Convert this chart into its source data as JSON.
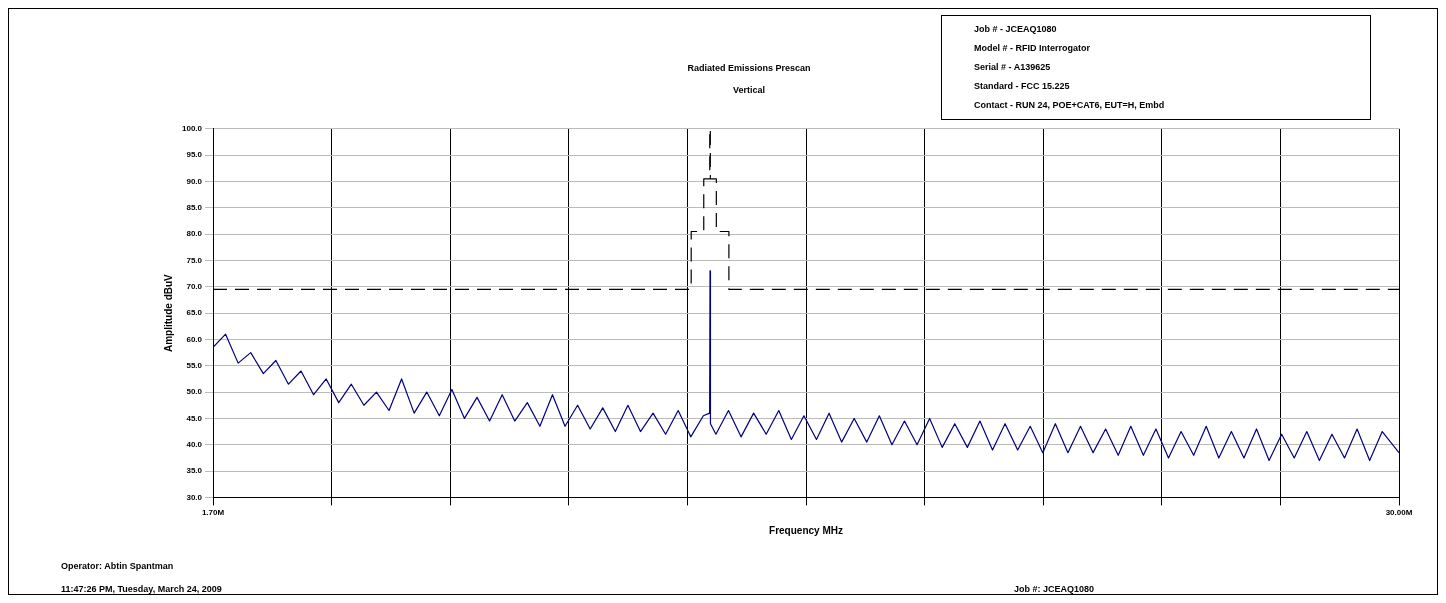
{
  "chart_data": {
    "type": "line",
    "title": "Radiated Emissions Prescan",
    "subtitle": "Vertical",
    "xlabel": "Frequency MHz",
    "ylabel": "Amplitude dBuV",
    "xlim": [
      1.7,
      30
    ],
    "xticks": [
      {
        "value": 1.7,
        "label": "1.70M"
      },
      {
        "value": 4.53,
        "label": null
      },
      {
        "value": 7.36,
        "label": null
      },
      {
        "value": 10.19,
        "label": null
      },
      {
        "value": 13.02,
        "label": null
      },
      {
        "value": 15.85,
        "label": null
      },
      {
        "value": 18.68,
        "label": null
      },
      {
        "value": 21.51,
        "label": null
      },
      {
        "value": 24.34,
        "label": null
      },
      {
        "value": 27.17,
        "label": null
      },
      {
        "value": 30,
        "label": "30.00M"
      }
    ],
    "ylim": [
      30,
      100
    ],
    "yticks": [
      {
        "value": 30,
        "label": "30.0"
      },
      {
        "value": 35,
        "label": "35.0"
      },
      {
        "value": 40,
        "label": "40.0"
      },
      {
        "value": 45,
        "label": "45.0"
      },
      {
        "value": 50,
        "label": "50.0"
      },
      {
        "value": 55,
        "label": "55.0"
      },
      {
        "value": 60,
        "label": "60.0"
      },
      {
        "value": 65,
        "label": "65.0"
      },
      {
        "value": 70,
        "label": "70.0"
      },
      {
        "value": 75,
        "label": "75.0"
      },
      {
        "value": 80,
        "label": "80.0"
      },
      {
        "value": 85,
        "label": "85.0"
      },
      {
        "value": 90,
        "label": "90.0"
      },
      {
        "value": 95,
        "label": "95.0"
      },
      {
        "value": 100,
        "label": "100.0"
      }
    ],
    "grid": true,
    "legend": false,
    "marker": "none",
    "series": [
      {
        "color": "#000080",
        "line_style": "solid",
        "x": [
          1.7,
          2.0,
          2.3,
          2.6,
          2.9,
          3.2,
          3.5,
          3.8,
          4.1,
          4.4,
          4.7,
          5.0,
          5.3,
          5.6,
          5.9,
          6.2,
          6.5,
          6.8,
          7.1,
          7.4,
          7.7,
          8.0,
          8.3,
          8.6,
          8.9,
          9.2,
          9.5,
          9.8,
          10.1,
          10.4,
          10.7,
          11.0,
          11.3,
          11.6,
          11.9,
          12.2,
          12.5,
          12.8,
          13.1,
          13.4,
          13.55,
          13.56,
          13.57,
          13.7,
          14.0,
          14.3,
          14.6,
          14.9,
          15.2,
          15.5,
          15.8,
          16.1,
          16.4,
          16.7,
          17.0,
          17.3,
          17.6,
          17.9,
          18.2,
          18.5,
          18.8,
          19.1,
          19.4,
          19.7,
          20.0,
          20.3,
          20.6,
          20.9,
          21.2,
          21.5,
          21.8,
          22.1,
          22.4,
          22.7,
          23.0,
          23.3,
          23.6,
          23.9,
          24.2,
          24.5,
          24.8,
          25.1,
          25.4,
          25.7,
          26.0,
          26.3,
          26.6,
          26.9,
          27.2,
          27.5,
          27.8,
          28.1,
          28.4,
          28.7,
          29.0,
          29.3,
          29.6,
          30.0
        ],
        "values": [
          58.5,
          61,
          55.5,
          57.5,
          53.5,
          56,
          51.5,
          54,
          49.5,
          52.5,
          48,
          51.5,
          47.5,
          50,
          46.5,
          52.5,
          46,
          50,
          45.5,
          50.5,
          45,
          49,
          44.5,
          49.5,
          44.5,
          48,
          43.5,
          49.5,
          43.5,
          47.5,
          43,
          47,
          42.5,
          47.5,
          42.5,
          46,
          42,
          46.5,
          41.5,
          45.5,
          46,
          73,
          44,
          42,
          46.5,
          41.5,
          46,
          42,
          46.5,
          41,
          45.5,
          41,
          46,
          40.5,
          45,
          40.5,
          45.5,
          40,
          44.5,
          40,
          45,
          39.5,
          44,
          39.5,
          44.5,
          39,
          44,
          39,
          43.5,
          38.5,
          44,
          38.5,
          43.5,
          38.5,
          43,
          38,
          43.5,
          38,
          43,
          37.5,
          42.5,
          38,
          43.5,
          37.5,
          42.5,
          37.5,
          43,
          37,
          42,
          37.5,
          42.5,
          37,
          42,
          37.5,
          43,
          37,
          42.5,
          38.5
        ]
      },
      {
        "color": "#000000",
        "line_style": "dashed",
        "x": [
          1.7,
          13.11,
          13.11,
          13.41,
          13.41,
          13.553,
          13.553,
          13.567,
          13.567,
          13.71,
          13.71,
          14.01,
          14.01,
          30
        ],
        "values": [
          69.5,
          69.5,
          80.5,
          80.5,
          90.5,
          90.5,
          100,
          100,
          90.5,
          90.5,
          80.5,
          80.5,
          69.5,
          69.5
        ]
      }
    ],
    "annotations": [
      "Job # - JCEAQ1080",
      "Model # - RFID Interrogator",
      "Serial # - A139625",
      "Standard - FCC 15.225",
      "Contact - RUN 24, POE+CAT6, EUT=H, Embd",
      "Operator: Abtin Spantman",
      "11:47:26 PM, Tuesday, March 24, 2009",
      "Job #: JCEAQ1080"
    ]
  }
}
